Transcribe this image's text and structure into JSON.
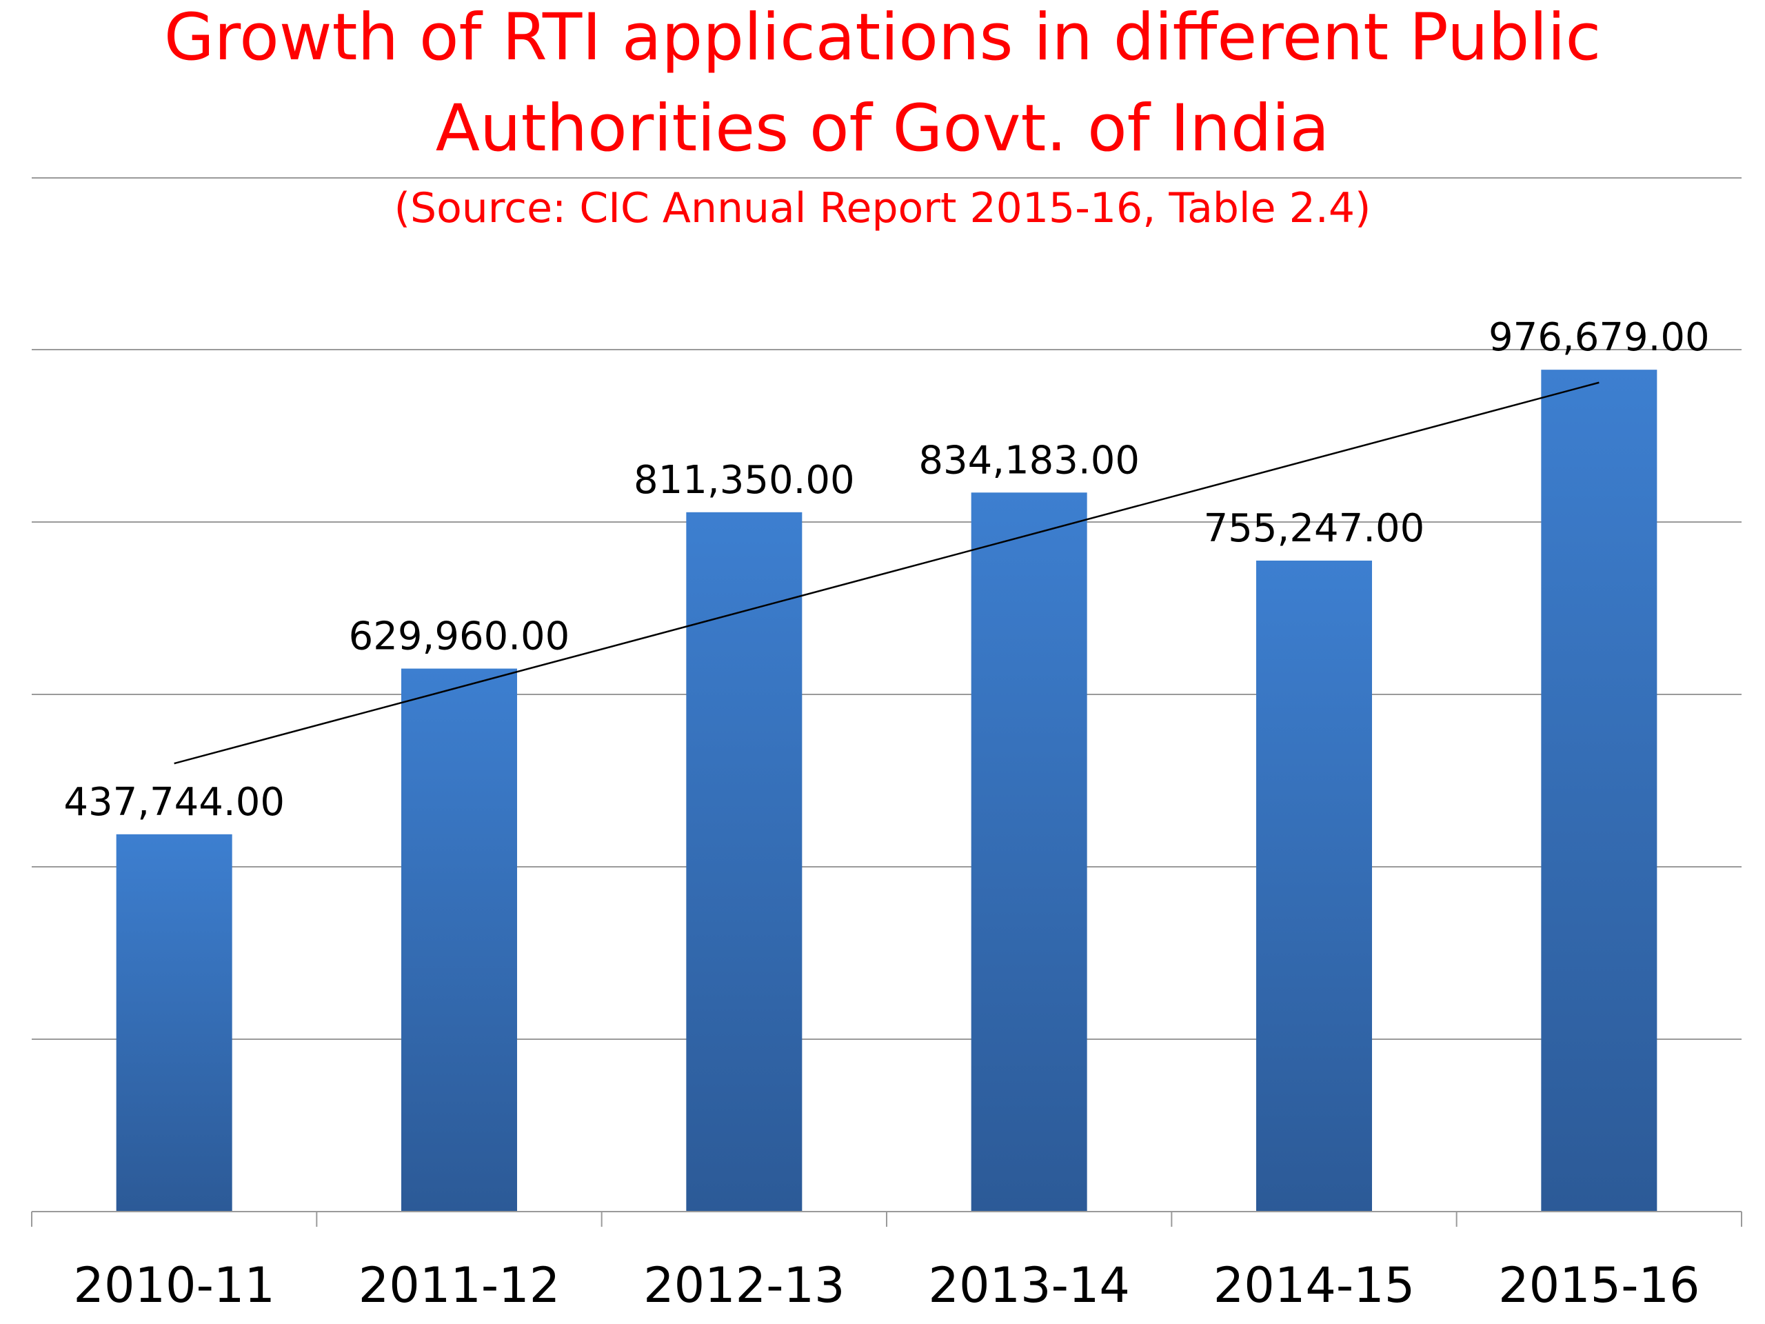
{
  "title_lines": [
    "Growth of RTI applications in different Public",
    "Authorities of Govt. of India"
  ],
  "subtitle": "(Source: CIC Annual Report 2015-16, Table 2.4)",
  "colors": {
    "title": "#ff0000",
    "bar_top": "#3d7fd0",
    "bar_bottom": "#2c5a97",
    "gridline": "#9a9a9a",
    "trendline": "#000000"
  },
  "chart_data": {
    "type": "bar",
    "categories": [
      "2010-11",
      "2011-12",
      "2012-13",
      "2013-14",
      "2014-15",
      "2015-16"
    ],
    "values": [
      437744,
      629960,
      811350,
      834183,
      755247,
      976679
    ],
    "value_labels": [
      "437,744.00",
      "629,960.00",
      "811,350.00",
      "834,183.00",
      "755,247.00",
      "976,679.00"
    ],
    "ylim": [
      0,
      1000000
    ],
    "gridlines": [
      200000,
      400000,
      600000,
      800000,
      1000000
    ],
    "grid": true,
    "trendline": "linear",
    "title": "Growth of RTI applications in different Public Authorities of Govt. of India",
    "xlabel": "",
    "ylabel": ""
  }
}
